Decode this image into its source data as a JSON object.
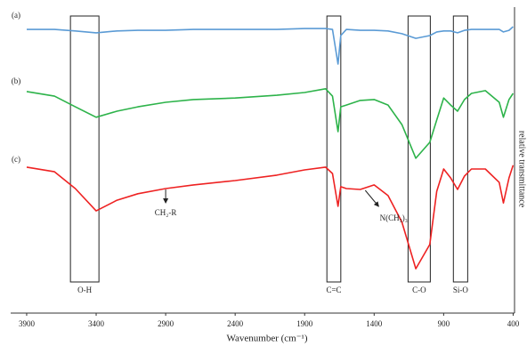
{
  "chart_data": {
    "type": "line",
    "x_label": "Wavenumber (cm⁻¹)",
    "y_label": "relative transmittance",
    "x": [
      3900,
      3700,
      3550,
      3400,
      3250,
      3100,
      2900,
      2700,
      2400,
      2100,
      1900,
      1750,
      1700,
      1660,
      1640,
      1600,
      1500,
      1400,
      1300,
      1200,
      1100,
      1000,
      950,
      900,
      850,
      800,
      750,
      700,
      600,
      500,
      470,
      430,
      400
    ],
    "series": [
      {
        "name": "(a)",
        "color": "#5b9bd5",
        "values": [
          92.7,
          92.7,
          92.2,
          91.6,
          92.2,
          92.4,
          92.4,
          92.7,
          92.7,
          92.7,
          93.0,
          93.0,
          92.7,
          81.4,
          90.7,
          92.7,
          92.4,
          92.4,
          92.2,
          91.3,
          89.8,
          90.7,
          91.9,
          92.2,
          92.2,
          91.6,
          92.4,
          92.7,
          92.7,
          92.7,
          91.9,
          92.4,
          93.6
        ]
      },
      {
        "name": "(b)",
        "color": "#2db34a",
        "values": [
          72.4,
          70.9,
          67.4,
          64.0,
          66.0,
          67.4,
          68.9,
          69.8,
          70.3,
          71.2,
          72.1,
          73.3,
          70.9,
          59.3,
          67.4,
          68.0,
          69.5,
          69.8,
          68.0,
          61.6,
          50.6,
          55.8,
          63.1,
          70.3,
          68.0,
          66.0,
          69.8,
          71.8,
          72.7,
          68.9,
          64.0,
          69.8,
          71.8
        ]
      },
      {
        "name": "(c)",
        "color": "#ee2222",
        "values": [
          47.7,
          46.2,
          40.7,
          33.4,
          36.9,
          39.0,
          40.7,
          41.9,
          43.3,
          45.1,
          46.8,
          47.7,
          45.6,
          34.9,
          41.3,
          40.7,
          40.4,
          41.9,
          38.4,
          29.7,
          14.5,
          22.4,
          39.8,
          47.1,
          44.2,
          40.4,
          44.8,
          47.1,
          47.1,
          42.7,
          36.0,
          44.2,
          48.3
        ]
      }
    ],
    "xlim": [
      4015,
      390
    ],
    "ylim": [
      0,
      100
    ],
    "xticks": [
      3900,
      3400,
      2900,
      2400,
      1900,
      1400,
      900,
      400
    ],
    "boxes": [
      {
        "label": "O-H",
        "x_range": [
          3585,
          3380
        ]
      },
      {
        "label": "C=C",
        "x_range": [
          1740,
          1640
        ]
      },
      {
        "label": "C-O",
        "x_range": [
          1156,
          996
        ]
      },
      {
        "label": "Si-O",
        "x_range": [
          830,
          727
        ]
      }
    ],
    "arrows": [
      {
        "label": "CH₂-R",
        "x": 2900
      },
      {
        "label": "N(CH₃)₃",
        "x": 1400
      }
    ]
  }
}
